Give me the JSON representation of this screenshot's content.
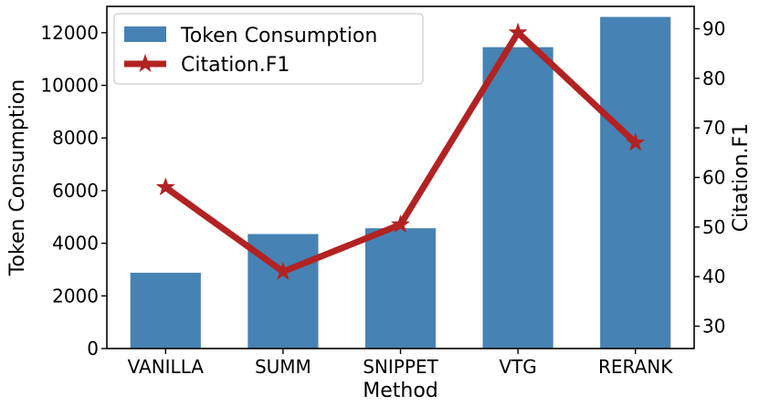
{
  "chart_data": {
    "type": "bar",
    "categories": [
      "VANILLA",
      "SUMM",
      "SNIPPET",
      "VTG",
      "RERANK"
    ],
    "series": [
      {
        "name": "Token Consumption",
        "type": "bar",
        "axis": "left",
        "color": "#4682b4",
        "values": [
          2880,
          4350,
          4570,
          11450,
          12600
        ]
      },
      {
        "name": "Citation.F1",
        "type": "line",
        "axis": "right",
        "color": "#b22222",
        "marker": "star",
        "values": [
          58,
          41,
          50.5,
          89.2,
          67
        ]
      }
    ],
    "xlabel": "Method",
    "ylabel": "Token Consumption",
    "y2label": "Citation.F1",
    "ylim": [
      0,
      13000
    ],
    "y2lim": [
      25.5,
      94.5
    ],
    "yticks": [
      "0",
      "2000",
      "4000",
      "6000",
      "8000",
      "10000",
      "12000"
    ],
    "y2ticks": [
      "30",
      "40",
      "50",
      "60",
      "70",
      "80",
      "90"
    ],
    "grid": false,
    "legend": "top-left"
  }
}
